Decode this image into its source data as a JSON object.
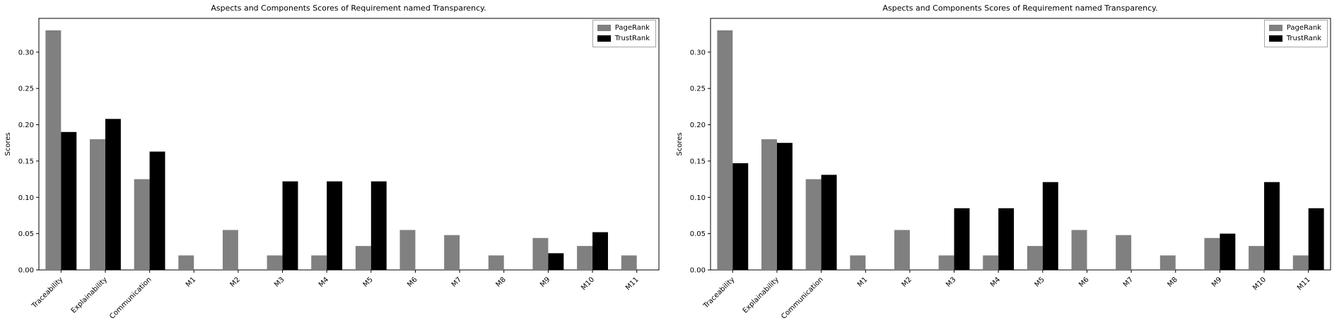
{
  "page": {
    "background": "#ffffff"
  },
  "chart_data": [
    {
      "type": "bar",
      "title": "Aspects and Components Scores of Requirement named Transparency.",
      "ylabel": "Scores",
      "xlabel": "",
      "legend_position": "upper right",
      "grid": false,
      "ylim": [
        0,
        0.3465
      ],
      "yticks": [
        0.0,
        0.05,
        0.1,
        0.15,
        0.2,
        0.25,
        0.3
      ],
      "categories": [
        "Traceability",
        "Explainability",
        "Communication",
        "M1",
        "M2",
        "M3",
        "M4",
        "M5",
        "M6",
        "M7",
        "M8",
        "M9",
        "M10",
        "M11"
      ],
      "series": [
        {
          "name": "PageRank",
          "color": "#808080",
          "values": [
            0.33,
            0.18,
            0.125,
            0.02,
            0.055,
            0.02,
            0.02,
            0.033,
            0.055,
            0.048,
            0.02,
            0.044,
            0.033,
            0.02
          ]
        },
        {
          "name": "TrustRank",
          "color": "#000000",
          "values": [
            0.19,
            0.208,
            0.163,
            0,
            0,
            0.122,
            0.122,
            0.122,
            0,
            0,
            0,
            0.023,
            0.052,
            0
          ]
        }
      ]
    },
    {
      "type": "bar",
      "title": "Aspects and Components Scores of Requirement named Transparency.",
      "ylabel": "Scores",
      "xlabel": "",
      "legend_position": "upper right",
      "grid": false,
      "ylim": [
        0,
        0.3465
      ],
      "yticks": [
        0.0,
        0.05,
        0.1,
        0.15,
        0.2,
        0.25,
        0.3
      ],
      "categories": [
        "Traceability",
        "Explainability",
        "Communication",
        "M1",
        "M2",
        "M3",
        "M4",
        "M5",
        "M6",
        "M7",
        "M8",
        "M9",
        "M10",
        "M11"
      ],
      "series": [
        {
          "name": "PageRank",
          "color": "#808080",
          "values": [
            0.33,
            0.18,
            0.125,
            0.02,
            0.055,
            0.02,
            0.02,
            0.033,
            0.055,
            0.048,
            0.02,
            0.044,
            0.033,
            0.02
          ]
        },
        {
          "name": "TrustRank",
          "color": "#000000",
          "values": [
            0.147,
            0.175,
            0.131,
            0,
            0,
            0.085,
            0.085,
            0.121,
            0,
            0,
            0,
            0.05,
            0.121,
            0.085
          ]
        }
      ]
    }
  ]
}
